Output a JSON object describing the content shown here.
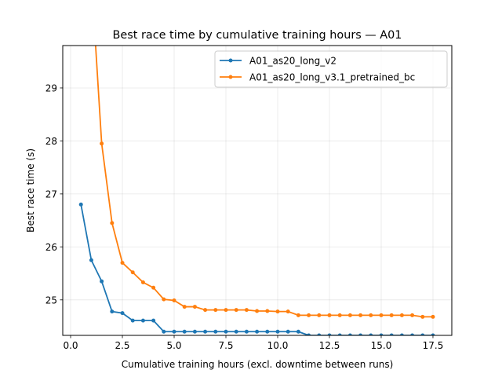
{
  "chart_data": {
    "type": "line",
    "title": "Best race time by cumulative training hours — A01",
    "xlabel": "Cumulative training hours (excl. downtime between runs)",
    "ylabel": "Best race time (s)",
    "xlim": [
      -0.38,
      18.41
    ],
    "ylim": [
      24.33,
      29.8
    ],
    "xticks": [
      0.0,
      2.5,
      5.0,
      7.5,
      10.0,
      12.5,
      15.0,
      17.5
    ],
    "xtick_labels": [
      "0.0",
      "2.5",
      "5.0",
      "7.5",
      "10.0",
      "12.5",
      "15.0",
      "17.5"
    ],
    "yticks": [
      25,
      26,
      27,
      28,
      29
    ],
    "ytick_labels": [
      "25",
      "26",
      "27",
      "28",
      "29"
    ],
    "grid": true,
    "legend_position": "top-right",
    "series": [
      {
        "name": "A01_as20_long_v2",
        "color": "#1f77b4",
        "x": [
          0.5,
          1.0,
          1.5,
          2.0,
          2.5,
          3.0,
          3.5,
          4.0,
          4.5,
          5.0,
          5.5,
          6.0,
          6.5,
          7.0,
          7.5,
          8.0,
          8.5,
          9.0,
          9.5,
          10.0,
          10.5,
          11.0,
          11.5,
          12.0,
          12.5,
          13.0,
          13.5,
          14.0,
          14.5,
          15.0,
          15.5,
          16.0,
          16.5,
          17.0,
          17.5
        ],
        "y": [
          26.8,
          25.75,
          25.35,
          24.78,
          24.75,
          24.61,
          24.61,
          24.61,
          24.4,
          24.4,
          24.4,
          24.4,
          24.4,
          24.4,
          24.4,
          24.4,
          24.4,
          24.4,
          24.4,
          24.4,
          24.4,
          24.4,
          24.33,
          24.33,
          24.33,
          24.33,
          24.33,
          24.33,
          24.33,
          24.33,
          24.33,
          24.33,
          24.33,
          24.33,
          24.33
        ]
      },
      {
        "name": "A01_as20_long_v3.1_pretrained_bc",
        "color": "#ff7f0e",
        "x": [
          1.0,
          1.5,
          2.0,
          2.5,
          3.0,
          3.5,
          4.0,
          4.5,
          5.0,
          5.5,
          6.0,
          6.5,
          7.0,
          7.5,
          8.0,
          8.5,
          9.0,
          9.5,
          10.0,
          10.5,
          11.0,
          11.5,
          12.0,
          12.5,
          13.0,
          13.5,
          14.0,
          14.5,
          15.0,
          15.5,
          16.0,
          16.5,
          17.0,
          17.5
        ],
        "y": [
          31.1,
          27.95,
          26.45,
          25.7,
          25.52,
          25.33,
          25.23,
          25.01,
          24.99,
          24.87,
          24.87,
          24.81,
          24.81,
          24.81,
          24.81,
          24.81,
          24.79,
          24.79,
          24.78,
          24.78,
          24.71,
          24.71,
          24.71,
          24.71,
          24.71,
          24.71,
          24.71,
          24.71,
          24.71,
          24.71,
          24.71,
          24.71,
          24.68,
          24.68
        ]
      }
    ]
  }
}
